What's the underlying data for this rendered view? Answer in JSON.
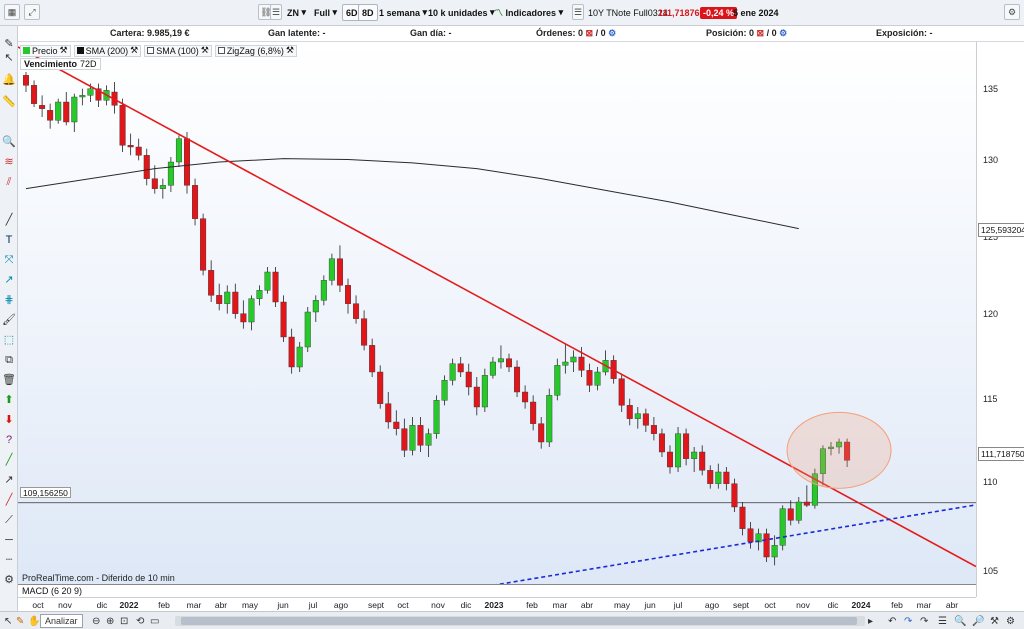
{
  "toolbar": {
    "symbol": "ZN",
    "mode": "Full",
    "btn_6d_a": "6D",
    "btn_6d_b": "8D",
    "period": "1 semana",
    "units": "10 k unidades",
    "indicators": "Indicadores",
    "instrument": "10Y TNote Full0324",
    "price": "111,718760",
    "change": "-0,24 %",
    "date": "5 ene 2024"
  },
  "account": {
    "cartera": "Cartera: 9.985,19 €",
    "gan_latente": "Gan latente: -",
    "gan_dia": "Gan día: -",
    "ordenes": "Órdenes: 0",
    "ordenes_b": "/ 0",
    "posicion": "Posición: 0",
    "posicion_b": "/ 0",
    "exposicion": "Exposición: -"
  },
  "legend": {
    "precio": "Precio",
    "sma200": "SMA (200)",
    "sma100": "SMA (100)",
    "zigzag": "ZigZag (6,8%)",
    "venc_label": "Vencimiento",
    "venc_value": "72D"
  },
  "chart_data": {
    "type": "candlestick",
    "y_axis": {
      "ticks": [
        135,
        130,
        125,
        120,
        115,
        110,
        105
      ],
      "min": 103.5,
      "max": 136.8
    },
    "x_axis": {
      "ticks": [
        "oct",
        "nov",
        "dic",
        "2022",
        "feb",
        "mar",
        "abr",
        "may",
        "jun",
        "jul",
        "ago",
        "sept",
        "oct",
        "nov",
        "dic",
        "2023",
        "feb",
        "mar",
        "abr",
        "may",
        "jun",
        "jul",
        "ago",
        "sept",
        "oct",
        "nov",
        "dic",
        "2024",
        "feb",
        "mar",
        "abr"
      ],
      "years": [
        "2022",
        "2023",
        "2024"
      ]
    },
    "labels": {
      "sma200_value": "125,593204",
      "last_price": "111,718750",
      "horizontal_line": "109,156250"
    },
    "colors": {
      "up": "#27c92a",
      "down": "#e0161b",
      "trendline": "#e51b1b",
      "sma": "#2a2a2a",
      "support": "#1a2ad6",
      "ellipse": "#f4a07a"
    },
    "candles": [
      [
        134.8,
        135.0,
        133.8,
        134.2
      ],
      [
        134.2,
        134.5,
        132.9,
        133.1
      ],
      [
        133.0,
        133.6,
        132.3,
        132.8
      ],
      [
        132.7,
        133.1,
        131.6,
        132.1
      ],
      [
        132.1,
        133.4,
        131.9,
        133.2
      ],
      [
        133.2,
        133.8,
        131.8,
        132.0
      ],
      [
        132.0,
        133.7,
        131.4,
        133.5
      ],
      [
        133.5,
        134.0,
        133.0,
        133.6
      ],
      [
        133.6,
        134.3,
        133.2,
        134.0
      ],
      [
        134.0,
        134.3,
        132.9,
        133.3
      ],
      [
        133.3,
        134.2,
        133.0,
        133.9
      ],
      [
        133.8,
        134.4,
        132.5,
        133.0
      ],
      [
        133.0,
        133.4,
        130.2,
        130.6
      ],
      [
        130.6,
        131.3,
        130.0,
        130.5
      ],
      [
        130.5,
        131.0,
        129.7,
        130.0
      ],
      [
        130.0,
        130.4,
        128.2,
        128.6
      ],
      [
        128.6,
        129.4,
        127.7,
        128.0
      ],
      [
        128.0,
        128.6,
        127.4,
        128.2
      ],
      [
        128.2,
        129.9,
        127.8,
        129.6
      ],
      [
        129.6,
        131.2,
        129.3,
        131.0
      ],
      [
        131.0,
        131.4,
        127.7,
        128.2
      ],
      [
        128.2,
        128.6,
        125.8,
        126.2
      ],
      [
        126.2,
        126.5,
        122.8,
        123.1
      ],
      [
        123.1,
        123.7,
        121.2,
        121.6
      ],
      [
        121.6,
        122.3,
        120.7,
        121.1
      ],
      [
        121.1,
        122.2,
        120.5,
        121.8
      ],
      [
        121.8,
        122.3,
        120.2,
        120.5
      ],
      [
        120.5,
        121.3,
        119.6,
        120.0
      ],
      [
        120.0,
        121.6,
        119.5,
        121.4
      ],
      [
        121.4,
        122.2,
        121.0,
        121.9
      ],
      [
        121.9,
        123.3,
        121.7,
        123.0
      ],
      [
        123.0,
        123.3,
        120.9,
        121.2
      ],
      [
        121.2,
        121.6,
        118.8,
        119.1
      ],
      [
        119.1,
        119.6,
        116.9,
        117.3
      ],
      [
        117.3,
        118.8,
        117.0,
        118.5
      ],
      [
        118.5,
        120.9,
        118.2,
        120.6
      ],
      [
        120.6,
        121.6,
        120.0,
        121.3
      ],
      [
        121.3,
        122.8,
        121.0,
        122.5
      ],
      [
        122.5,
        124.1,
        122.2,
        123.8
      ],
      [
        123.8,
        124.6,
        121.8,
        122.2
      ],
      [
        122.2,
        122.6,
        120.5,
        121.1
      ],
      [
        121.1,
        121.6,
        119.9,
        120.2
      ],
      [
        120.2,
        120.7,
        118.3,
        118.6
      ],
      [
        118.6,
        119.0,
        116.7,
        117.0
      ],
      [
        117.0,
        117.4,
        114.8,
        115.1
      ],
      [
        115.1,
        115.8,
        113.6,
        114.0
      ],
      [
        114.0,
        114.7,
        113.2,
        113.6
      ],
      [
        113.6,
        114.2,
        111.9,
        112.3
      ],
      [
        112.3,
        114.3,
        112.0,
        113.8
      ],
      [
        113.8,
        114.3,
        112.2,
        112.6
      ],
      [
        112.6,
        113.6,
        111.9,
        113.3
      ],
      [
        113.3,
        115.6,
        113.0,
        115.3
      ],
      [
        115.3,
        116.8,
        115.0,
        116.5
      ],
      [
        116.5,
        117.8,
        116.2,
        117.5
      ],
      [
        117.5,
        117.9,
        116.7,
        117.0
      ],
      [
        117.0,
        117.5,
        115.6,
        116.1
      ],
      [
        116.1,
        116.7,
        114.4,
        114.9
      ],
      [
        114.9,
        117.2,
        114.6,
        116.8
      ],
      [
        116.8,
        117.9,
        116.6,
        117.6
      ],
      [
        117.6,
        118.6,
        117.2,
        117.8
      ],
      [
        117.8,
        118.1,
        117.0,
        117.3
      ],
      [
        117.3,
        117.7,
        115.5,
        115.8
      ],
      [
        115.8,
        116.2,
        114.8,
        115.2
      ],
      [
        115.2,
        115.6,
        113.5,
        113.9
      ],
      [
        113.9,
        114.3,
        112.4,
        112.8
      ],
      [
        112.8,
        116.0,
        112.5,
        115.6
      ],
      [
        115.6,
        117.8,
        115.3,
        117.4
      ],
      [
        117.4,
        118.7,
        116.9,
        117.6
      ],
      [
        117.6,
        118.3,
        117.0,
        117.9
      ],
      [
        117.9,
        118.5,
        116.7,
        117.1
      ],
      [
        117.1,
        117.5,
        115.8,
        116.2
      ],
      [
        116.2,
        117.3,
        115.9,
        117.0
      ],
      [
        117.0,
        118.3,
        116.8,
        117.7
      ],
      [
        117.7,
        118.0,
        116.3,
        116.6
      ],
      [
        116.6,
        116.9,
        114.6,
        115.0
      ],
      [
        115.0,
        115.4,
        113.8,
        114.2
      ],
      [
        114.2,
        114.9,
        113.6,
        114.5
      ],
      [
        114.5,
        114.8,
        113.4,
        113.8
      ],
      [
        113.8,
        114.3,
        112.9,
        113.3
      ],
      [
        113.3,
        113.6,
        111.9,
        112.2
      ],
      [
        112.2,
        112.6,
        110.9,
        111.3
      ],
      [
        111.3,
        113.7,
        111.0,
        113.3
      ],
      [
        113.3,
        113.6,
        111.4,
        111.8
      ],
      [
        111.8,
        112.5,
        111.0,
        112.2
      ],
      [
        112.2,
        112.6,
        110.8,
        111.1
      ],
      [
        111.1,
        111.4,
        110.0,
        110.3
      ],
      [
        110.3,
        111.5,
        110.0,
        111.0
      ],
      [
        111.0,
        111.3,
        109.9,
        110.3
      ],
      [
        110.3,
        110.6,
        108.6,
        108.9
      ],
      [
        108.9,
        109.2,
        107.2,
        107.6
      ],
      [
        107.6,
        108.0,
        106.4,
        106.8
      ],
      [
        106.8,
        107.6,
        106.3,
        107.3
      ],
      [
        107.3,
        107.6,
        105.6,
        105.9
      ],
      [
        105.9,
        107.2,
        105.4,
        106.6
      ],
      [
        106.6,
        109.0,
        106.3,
        108.8
      ],
      [
        108.8,
        109.3,
        107.8,
        108.1
      ],
      [
        108.1,
        109.5,
        107.9,
        109.2
      ],
      [
        109.2,
        110.2,
        108.9,
        109.0
      ],
      [
        109.0,
        111.2,
        108.8,
        110.9
      ],
      [
        110.9,
        112.6,
        110.2,
        112.4
      ],
      [
        112.4,
        112.8,
        112.0,
        112.5
      ],
      [
        112.5,
        113.0,
        112.1,
        112.8
      ],
      [
        112.8,
        113.0,
        111.3,
        111.7
      ]
    ],
    "sma_line": [
      [
        0,
        128.0
      ],
      [
        8,
        128.6
      ],
      [
        16,
        129.2
      ],
      [
        24,
        129.6
      ],
      [
        32,
        129.8
      ],
      [
        40,
        129.75
      ],
      [
        48,
        129.55
      ],
      [
        56,
        129.2
      ],
      [
        64,
        128.6
      ],
      [
        72,
        127.9
      ],
      [
        80,
        127.2
      ],
      [
        88,
        126.4
      ],
      [
        96,
        125.6
      ]
    ],
    "trendline": [
      [
        -1,
        136.5
      ],
      [
        104,
        109.0
      ]
    ],
    "support_line": [
      [
        58,
        104.2
      ],
      [
        104,
        107.9
      ]
    ],
    "horizontal_line_value": 109.15625
  },
  "footer": {
    "source": "ProRealTime.com - Diferido de 10 min",
    "macd": "MACD (6 20 9)",
    "analizar": "Analizar"
  }
}
